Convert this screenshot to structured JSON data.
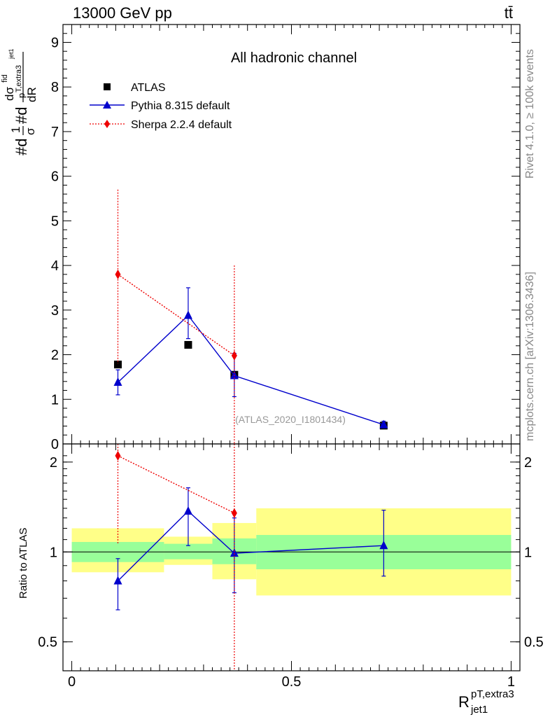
{
  "header": {
    "energy_label": "13000 GeV pp",
    "process_label": "tt̄"
  },
  "side_labels": {
    "rivet": "Rivet 4.1.0, ≥ 100k events",
    "mcplots": "mcplots.cern.ch [arXiv:1306.3436]"
  },
  "chart_data": [
    {
      "type": "scatter",
      "title": "All hadronic channel",
      "analysis_tag": "(ATLAS_2020_I1801434)",
      "ylabel_parts": [
        "#d",
        "1",
        "σ",
        "#d",
        "dσ",
        "fid",
        "p",
        "T,extra3",
        "dR",
        "jet1"
      ],
      "xlim": [
        -0.02,
        1.02
      ],
      "ylim": [
        0,
        9.4
      ],
      "yticks": [
        "0",
        "1",
        "2",
        "3",
        "4",
        "5",
        "6",
        "7",
        "8",
        "9"
      ],
      "bins": [
        [
          0.0,
          0.21
        ],
        [
          0.21,
          0.32
        ],
        [
          0.32,
          0.42
        ],
        [
          0.42,
          1.0
        ]
      ],
      "series": [
        {
          "name": "ATLAS",
          "color": "#000000",
          "marker": "square",
          "line": "none",
          "x": [
            0.105,
            0.265,
            0.37,
            0.71
          ],
          "y": [
            1.78,
            2.22,
            1.55,
            0.41
          ],
          "err_lo": [
            0.06,
            0.06,
            0.06,
            0.02
          ],
          "err_hi": [
            0.06,
            0.06,
            0.06,
            0.02
          ]
        },
        {
          "name": "Pythia 8.315 default",
          "color": "#0000cc",
          "marker": "triangle",
          "line": "solid",
          "x": [
            0.105,
            0.265,
            0.37,
            0.71
          ],
          "y": [
            1.38,
            2.88,
            1.53,
            0.43
          ],
          "err_lo": [
            0.28,
            0.52,
            0.47,
            0.07
          ],
          "err_hi": [
            0.28,
            0.62,
            0.5,
            0.08
          ]
        },
        {
          "name": "Sherpa 2.2.4 default",
          "color": "#ee0000",
          "marker": "diamond",
          "line": "dotted",
          "x": [
            0.105,
            0.37
          ],
          "y": [
            3.8,
            1.98
          ],
          "err_lo": [
            2.0,
            1.98
          ],
          "err_hi": [
            1.9,
            2.02
          ]
        }
      ]
    },
    {
      "type": "scatter",
      "title": "Ratio to ATLAS",
      "ylabel": "Ratio to ATLAS",
      "xlabel_main": "R",
      "xlabel_sup": "pT,extra3",
      "xlabel_sub": "jet1",
      "xlim": [
        -0.02,
        1.02
      ],
      "ylim": [
        0.4,
        2.3
      ],
      "yscale": "log",
      "yticks": [
        "0.5",
        "1",
        "2"
      ],
      "xticks": [
        "0",
        "0.5",
        "1"
      ],
      "reference_line": 1,
      "bands": {
        "green": {
          "color": "#99ff99",
          "lo": [
            0.925,
            0.945,
            0.91,
            0.875
          ],
          "hi": [
            1.08,
            1.065,
            1.11,
            1.14
          ]
        },
        "yellow": {
          "color": "#ffff88",
          "lo": [
            0.855,
            0.905,
            0.81,
            0.715
          ],
          "hi": [
            1.2,
            1.125,
            1.25,
            1.4
          ]
        }
      },
      "series": [
        {
          "name": "Pythia 8.315 default",
          "color": "#0000cc",
          "marker": "triangle",
          "line": "solid",
          "x": [
            0.105,
            0.265,
            0.37,
            0.71
          ],
          "y": [
            0.8,
            1.37,
            0.99,
            1.05
          ],
          "err_lo": [
            0.16,
            0.32,
            0.26,
            0.22
          ],
          "err_hi": [
            0.15,
            0.27,
            0.31,
            0.33
          ]
        },
        {
          "name": "Sherpa 2.2.4 default",
          "color": "#ee0000",
          "marker": "diamond",
          "line": "dotted",
          "x": [
            0.105,
            0.37
          ],
          "y": [
            2.1,
            1.35
          ],
          "err_lo": [
            1.04,
            1.0
          ],
          "err_hi": [
            0.3,
            1.5
          ]
        }
      ]
    }
  ]
}
